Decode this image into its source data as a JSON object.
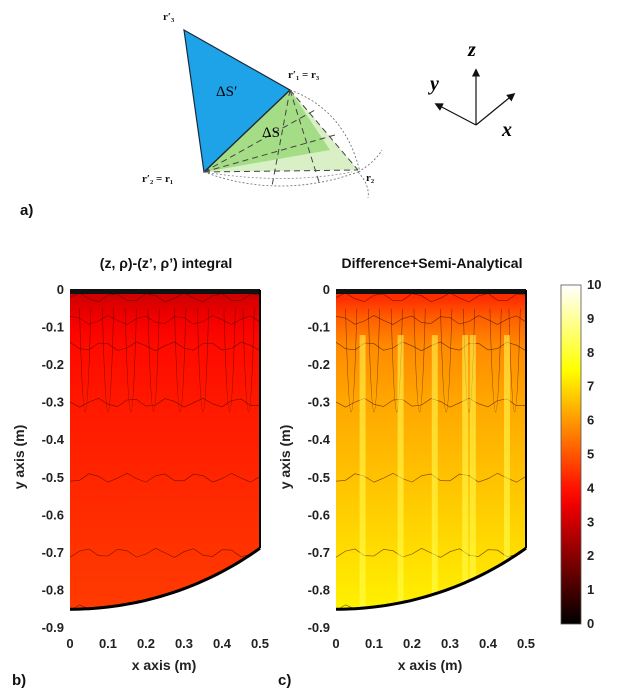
{
  "panel_labels": {
    "a": "a)",
    "b": "b)",
    "c": "c)"
  },
  "triangle": {
    "r3_prime": "r′₃",
    "r1p_eq_r3": "r′₁ = r₃",
    "r2p_eq_r1": "r′₂ = r₁",
    "r2": "r₂",
    "delta_s_prime": "ΔS′",
    "delta_s": "ΔS",
    "colors": {
      "s_prime": "#1fa3e8",
      "s": "#a5dc86",
      "s_light": "#d9f0c6"
    }
  },
  "axes_triad": {
    "z": "z⃗",
    "y": "y⃗",
    "x": "x⃗"
  },
  "chart_data": [
    {
      "type": "heatmap",
      "title": "(z, ρ)-(z’, ρ’) integral",
      "xlabel": "x axis (m)",
      "ylabel": "y axis (m)",
      "xlim": [
        0,
        0.5
      ],
      "ylim": [
        -0.9,
        0
      ],
      "xticks": [
        "0",
        "0.1",
        "0.2",
        "0.3",
        "0.4",
        "0.5"
      ],
      "yticks": [
        "0",
        "-0.1",
        "-0.2",
        "-0.3",
        "-0.4",
        "-0.5",
        "-0.6",
        "-0.7",
        "-0.8",
        "-0.9"
      ],
      "value_range": [
        3,
        5
      ],
      "boundary": "x² + y² = 0.85², x from 0 to 0.5",
      "bands": [
        {
          "y": -0.02,
          "value": 3.1
        },
        {
          "y": -0.08,
          "value": 3.6
        },
        {
          "y": -0.15,
          "value": 3.9
        },
        {
          "y": -0.3,
          "value": 4.1
        },
        {
          "y": -0.5,
          "value": 4.3
        },
        {
          "y": -0.7,
          "value": 4.5
        },
        {
          "y": -0.85,
          "value": 4.6
        }
      ]
    },
    {
      "type": "heatmap",
      "title": "Difference+Semi-Analytical",
      "xlabel": "x axis (m)",
      "ylabel": "y axis (m)",
      "xlim": [
        0,
        0.5
      ],
      "ylim": [
        -0.9,
        0
      ],
      "xticks": [
        "0",
        "0.1",
        "0.2",
        "0.3",
        "0.4",
        "0.5"
      ],
      "yticks": [
        "0",
        "-0.1",
        "-0.2",
        "-0.3",
        "-0.4",
        "-0.5",
        "-0.6",
        "-0.7",
        "-0.8",
        "-0.9"
      ],
      "value_range": [
        4,
        8
      ],
      "boundary": "x² + y² = 0.85², x from 0 to 0.5",
      "bands": [
        {
          "y": -0.02,
          "value": 4.4
        },
        {
          "y": -0.08,
          "value": 5.2
        },
        {
          "y": -0.15,
          "value": 5.8
        },
        {
          "y": -0.3,
          "value": 6.2
        },
        {
          "y": -0.5,
          "value": 6.6
        },
        {
          "y": -0.7,
          "value": 7.0
        },
        {
          "y": -0.85,
          "value": 7.3
        }
      ],
      "vertical_streaks_x": [
        0.07,
        0.17,
        0.26,
        0.34,
        0.36,
        0.45
      ],
      "streak_value": 8.3
    }
  ],
  "colorbar": {
    "min": 0,
    "max": 10,
    "ticks": [
      "0",
      "1",
      "2",
      "3",
      "4",
      "5",
      "6",
      "7",
      "8",
      "9",
      "10"
    ],
    "colormap": "hot"
  }
}
